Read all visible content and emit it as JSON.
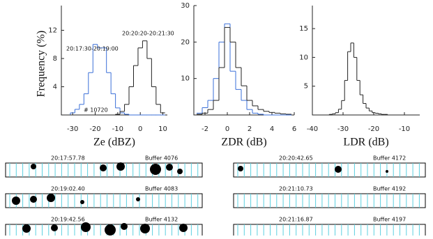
{
  "chart_data": [
    {
      "type": "step",
      "x_label": "Ze (dBZ)",
      "y_label": "Frequency (%)",
      "x": [
        -32,
        -30,
        -28,
        -26,
        -24,
        -22,
        -20,
        -18,
        -16,
        -14,
        -12,
        -10,
        -8,
        -6,
        -4,
        -2,
        0,
        2,
        4,
        6,
        8,
        10
      ],
      "series": [
        {
          "name": "20:17:30-20:19:00",
          "color": "#3a6fd8",
          "values": [
            0,
            0.3,
            0.8,
            1.5,
            3,
            6,
            10,
            9.5,
            9.5,
            6,
            3,
            1,
            0.3,
            0.1,
            0,
            0,
            0,
            0,
            0,
            0,
            0,
            0
          ]
        },
        {
          "name": "20:20:20-20:21:30",
          "color": "#222222",
          "values": [
            0,
            0,
            0,
            0,
            0,
            0,
            0,
            0,
            0,
            0,
            0,
            0.1,
            0.5,
            1.5,
            4,
            7,
            9.5,
            10.5,
            8,
            4,
            1.5,
            0.3
          ]
        }
      ],
      "annotation": "# 10720",
      "xlim": [
        -35,
        12
      ],
      "xticks": [
        -30,
        -20,
        -10,
        0,
        10
      ],
      "ylim": [
        0,
        15.5
      ],
      "yticks": [
        4,
        8,
        12
      ]
    },
    {
      "type": "step",
      "x_label": "ZDR (dB)",
      "x": [
        -2.5,
        -2,
        -1.5,
        -1,
        -0.5,
        0,
        0.5,
        1,
        1.5,
        2,
        2.5,
        3,
        3.5,
        4,
        4.5,
        5,
        5.5
      ],
      "series": [
        {
          "color": "#3a6fd8",
          "values": [
            0.5,
            2,
            4,
            10,
            20,
            25,
            12,
            7,
            4,
            1.5,
            0.5,
            0.2,
            0,
            0,
            0,
            0,
            0
          ]
        },
        {
          "color": "#222222",
          "values": [
            0.2,
            0.5,
            1.5,
            4,
            13,
            24,
            20,
            13,
            8,
            4,
            2.5,
            1.5,
            1,
            0.7,
            0.5,
            0.3,
            0.2
          ]
        }
      ],
      "xlim": [
        -3,
        6
      ],
      "xticks": [
        -2,
        0,
        2,
        4,
        6
      ],
      "ylim": [
        0,
        30
      ],
      "yticks": [
        10,
        20,
        30
      ]
    },
    {
      "type": "step",
      "x_label": "LDR (dB)",
      "x": [
        -35,
        -34,
        -33,
        -32,
        -31,
        -30,
        -29,
        -28,
        -27,
        -26,
        -25,
        -24,
        -23,
        -22,
        -21,
        -20,
        -19,
        -18,
        -17,
        -16,
        -15
      ],
      "series": [
        {
          "color": "#222222",
          "values": [
            0,
            0.1,
            0.2,
            0.4,
            1,
            2.5,
            6,
            11,
            12.5,
            10,
            6,
            3.5,
            2,
            1.2,
            0.7,
            0.4,
            0.3,
            0.2,
            0.1,
            0.1,
            0
          ]
        }
      ],
      "xlim": [
        -40,
        -5
      ],
      "xticks": [
        -40,
        -30,
        -20,
        -10
      ],
      "ylim": [
        0,
        19
      ],
      "yticks": [
        5,
        10,
        15
      ]
    }
  ],
  "image_strips": [
    {
      "time": "20:17:57.78",
      "buffer": "Buffer 4076"
    },
    {
      "time": "20:19:02.40",
      "buffer": "Buffer 4083"
    },
    {
      "time": "20:19:42.56",
      "buffer": "Buffer 4132"
    },
    {
      "time": "20:20:42.65",
      "buffer": "Buffer 4172"
    },
    {
      "time": "20:21:10.73",
      "buffer": "Buffer 4192"
    },
    {
      "time": "20:21:16.87",
      "buffer": "Buffer 4197"
    }
  ]
}
